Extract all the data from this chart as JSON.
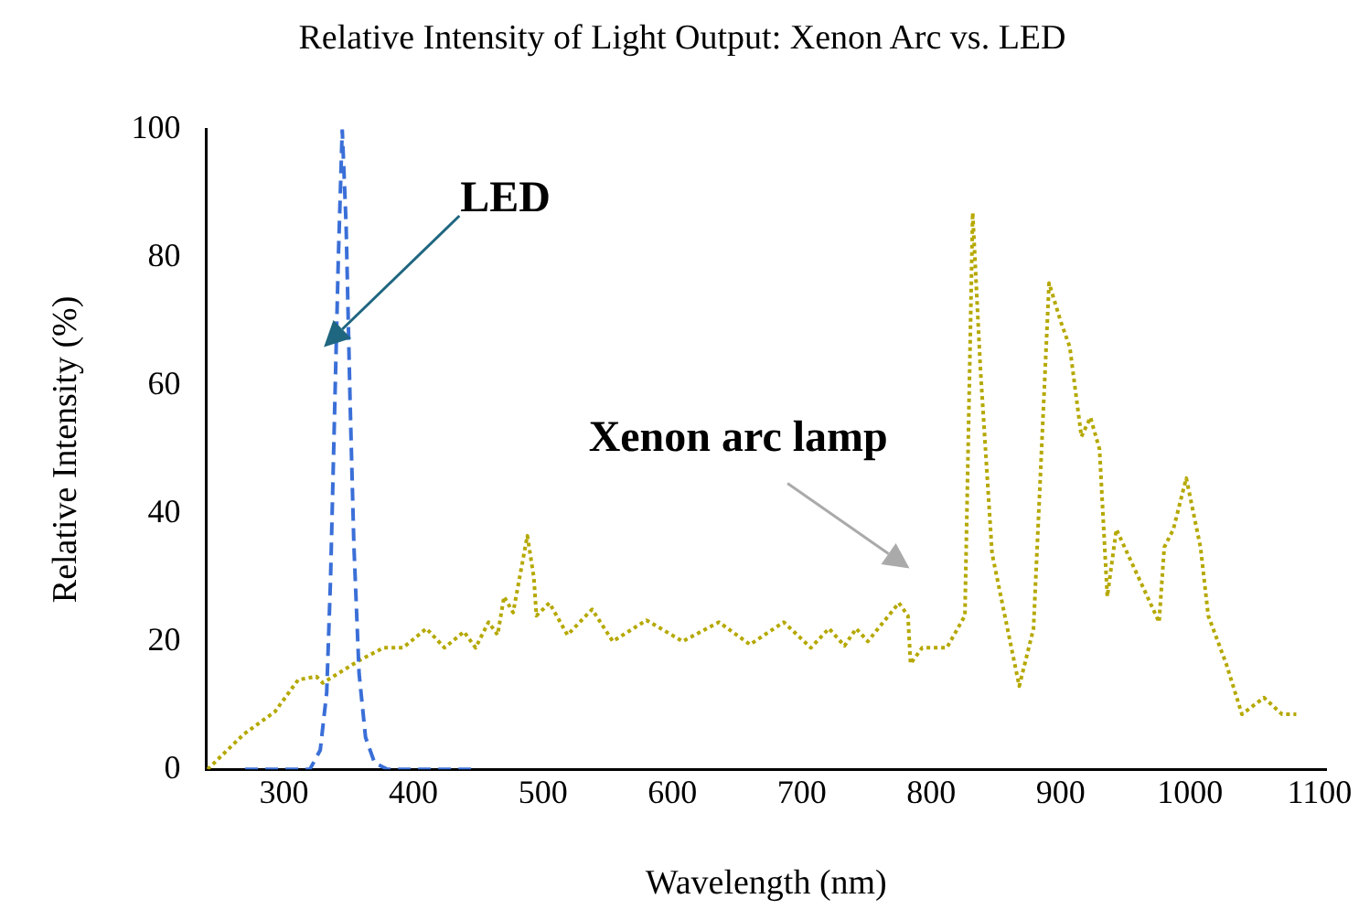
{
  "chart_data": {
    "type": "line",
    "title": "Relative Intensity of Light Output: Xenon Arc vs. LED",
    "xlabel": "Wavelength (nm)",
    "ylabel": "Relative Intensity (%)",
    "xlim": [
      240,
      1105
    ],
    "xticks": [
      300,
      400,
      500,
      600,
      700,
      800,
      900,
      1000,
      1100
    ],
    "ylim": [
      0,
      100
    ],
    "yticks": [
      0,
      20,
      40,
      60,
      80,
      100
    ],
    "grid": false,
    "legend": false,
    "marker": "none",
    "annotations": [
      "LED",
      "Xenon arc lamp"
    ],
    "series": [
      {
        "color": "#3a6fd8",
        "line_style": "dashed",
        "x": [
          270,
          300,
          320,
          328,
          333,
          336,
          339,
          342,
          345,
          348,
          351,
          354,
          358,
          363,
          370,
          380,
          400,
          450
        ],
        "values": [
          0,
          0,
          0,
          3,
          12,
          30,
          55,
          80,
          100,
          85,
          58,
          35,
          15,
          5,
          1,
          0,
          0,
          0
        ]
      },
      {
        "color": "#b5a800",
        "line_style": "dotted",
        "x": [
          241,
          269,
          293,
          311,
          325,
          330,
          358,
          377,
          392,
          410,
          424,
          439,
          448,
          458,
          465,
          470,
          477,
          488,
          493,
          495,
          505,
          519,
          538,
          554,
          580,
          608,
          636,
          660,
          686,
          707,
          721,
          733,
          742,
          751,
          775,
          782,
          784,
          793,
          812,
          826,
          832,
          838,
          847,
          868,
          879,
          891,
          900,
          907,
          916,
          923,
          930,
          936,
          943,
          976,
          980,
          987,
          997,
          1008,
          1014,
          1028,
          1040,
          1057,
          1071,
          1082
        ],
        "values": [
          0,
          5.5,
          9,
          14,
          14.5,
          13.5,
          17,
          19,
          19,
          22,
          19,
          21.5,
          19,
          23,
          21,
          27,
          24.5,
          36.5,
          30,
          24,
          26,
          21,
          25,
          20,
          23.3,
          20,
          23,
          19.5,
          23,
          19,
          22,
          19.3,
          22,
          20,
          26,
          24,
          16.5,
          19,
          19,
          24,
          87,
          62.5,
          33.7,
          13,
          22,
          76,
          70,
          66,
          52,
          55,
          50,
          27,
          37.5,
          23,
          34.7,
          37.5,
          45.5,
          34.7,
          24,
          16.4,
          8.6,
          11.2,
          8.6,
          8.6
        ]
      }
    ]
  }
}
